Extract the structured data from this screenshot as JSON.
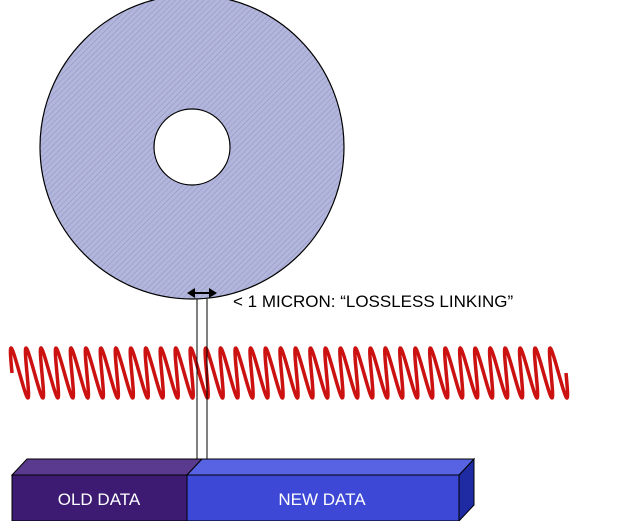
{
  "annotation": {
    "text": "< 1 MICRON: “LOSSLESS LINKING”"
  },
  "blocks": {
    "old_data": "OLD DATA",
    "new_data": "NEW DATA"
  },
  "colors": {
    "disc_fill": "#b3b6dc",
    "disc_hatch": "#8f93bd",
    "wave": "#cc1111",
    "old_front": "#3d1b73",
    "old_top": "#5a3a8e",
    "new_front": "#3d49d6",
    "new_top": "#5863e3",
    "new_side": "#1f2ba3",
    "label_on_new": "#ffffff"
  }
}
